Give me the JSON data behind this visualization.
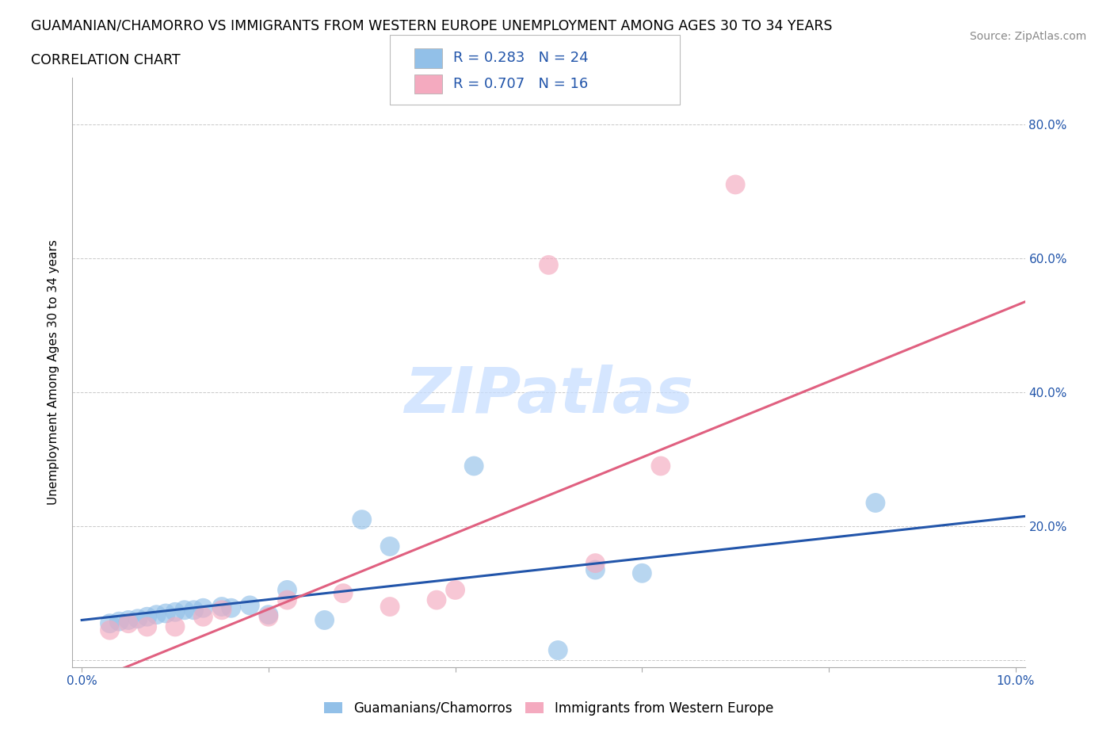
{
  "title_line1": "GUAMANIAN/CHAMORRO VS IMMIGRANTS FROM WESTERN EUROPE UNEMPLOYMENT AMONG AGES 30 TO 34 YEARS",
  "title_line2": "CORRELATION CHART",
  "source_text": "Source: ZipAtlas.com",
  "ylabel": "Unemployment Among Ages 30 to 34 years",
  "watermark_text": "ZIPatlas",
  "blue_R": 0.283,
  "blue_N": 24,
  "pink_R": 0.707,
  "pink_N": 16,
  "xlim": [
    -0.001,
    0.101
  ],
  "ylim": [
    -0.01,
    0.87
  ],
  "xticks": [
    0.0,
    0.02,
    0.04,
    0.06,
    0.08,
    0.1
  ],
  "yticks": [
    0.0,
    0.2,
    0.4,
    0.6,
    0.8
  ],
  "xtick_labels": [
    "0.0%",
    "",
    "",
    "",
    "",
    "10.0%"
  ],
  "ytick_labels_right": [
    "",
    "20.0%",
    "40.0%",
    "60.0%",
    "80.0%"
  ],
  "blue_color": "#92C0E8",
  "pink_color": "#F4AABF",
  "blue_line_color": "#2255AA",
  "pink_line_color": "#E06080",
  "legend_label_blue": "Guamanians/Chamorros",
  "legend_label_pink": "Immigrants from Western Europe",
  "blue_scatter_x": [
    0.003,
    0.004,
    0.005,
    0.006,
    0.007,
    0.008,
    0.009,
    0.01,
    0.011,
    0.012,
    0.013,
    0.015,
    0.016,
    0.018,
    0.02,
    0.022,
    0.026,
    0.03,
    0.033,
    0.042,
    0.051,
    0.055,
    0.06,
    0.085
  ],
  "blue_scatter_y": [
    0.055,
    0.058,
    0.06,
    0.062,
    0.065,
    0.068,
    0.07,
    0.072,
    0.075,
    0.075,
    0.078,
    0.08,
    0.078,
    0.082,
    0.068,
    0.105,
    0.06,
    0.21,
    0.17,
    0.29,
    0.015,
    0.135,
    0.13,
    0.235
  ],
  "pink_scatter_x": [
    0.003,
    0.005,
    0.007,
    0.01,
    0.013,
    0.015,
    0.02,
    0.022,
    0.028,
    0.033,
    0.038,
    0.04,
    0.05,
    0.055,
    0.062,
    0.07
  ],
  "pink_scatter_y": [
    0.045,
    0.055,
    0.05,
    0.05,
    0.065,
    0.075,
    0.065,
    0.09,
    0.1,
    0.08,
    0.09,
    0.105,
    0.59,
    0.145,
    0.29,
    0.71
  ],
  "blue_trend_x": [
    0.0,
    0.101
  ],
  "blue_trend_y": [
    0.06,
    0.215
  ],
  "pink_trend_x": [
    0.003,
    0.101
  ],
  "pink_trend_y": [
    -0.02,
    0.535
  ],
  "background_color": "#FFFFFF",
  "grid_color": "#BBBBBB",
  "title_fontsize": 12.5,
  "axis_label_fontsize": 11,
  "tick_fontsize": 11,
  "legend_fontsize": 12,
  "source_fontsize": 10,
  "watermark_fontsize": 58
}
